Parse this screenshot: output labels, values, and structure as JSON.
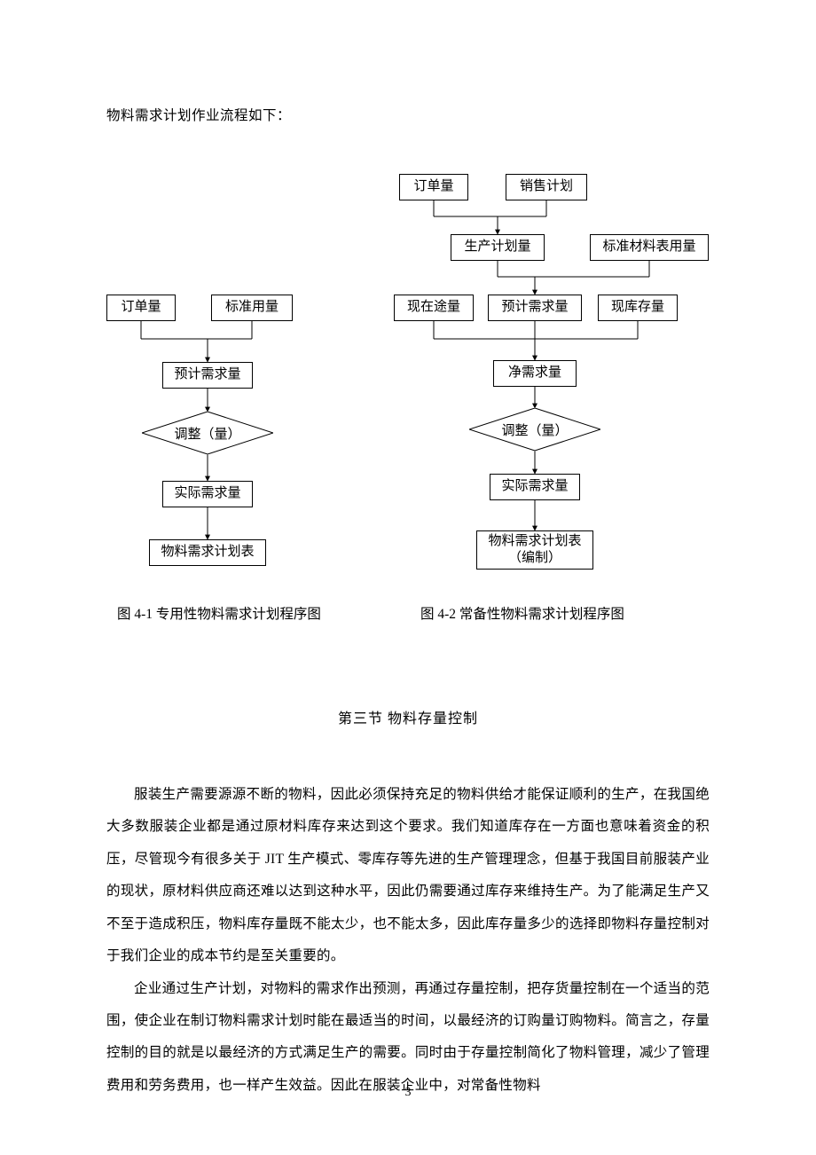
{
  "intro": "物料需求计划作业流程如下：",
  "left": {
    "nodes": {
      "order": {
        "label": "订单量"
      },
      "std": {
        "label": "标准用量"
      },
      "est": {
        "label": "预计需求量"
      },
      "adj": {
        "label": "调整（量）"
      },
      "act": {
        "label": "实际需求量"
      },
      "table": {
        "label": "物料需求计划表"
      }
    },
    "caption": "图 4-1  专用性物料需求计划程序图"
  },
  "right": {
    "nodes": {
      "order": {
        "label": "订单量"
      },
      "sales": {
        "label": "销售计划"
      },
      "plan": {
        "label": "生产计划量"
      },
      "stdmat": {
        "label": "标准材料表用量"
      },
      "transit": {
        "label": "现在途量"
      },
      "est": {
        "label": "预计需求量"
      },
      "stock": {
        "label": "现库存量"
      },
      "net": {
        "label": "净需求量"
      },
      "adj": {
        "label": "调整（量）"
      },
      "act": {
        "label": "实际需求量"
      },
      "table": {
        "label": "物料需求计划表\n（编制）"
      }
    },
    "caption": "图 4-2   常备性物料需求计划程序图"
  },
  "section_title": "第三节  物料存量控制",
  "paragraphs": [
    "服装生产需要源源不断的物料，因此必须保持充足的物料供给才能保证顺利的生产，在我国绝大多数服装企业都是通过原材料库存来达到这个要求。我们知道库存在一方面也意味着资金的积压，尽管现今有很多关于 JIT 生产模式、零库存等先进的生产管理理念，但基于我国目前服装产业的现状，原材料供应商还难以达到这种水平，因此仍需要通过库存来维持生产。为了能满足生产又不至于造成积压，物料库存量既不能太少，也不能太多，因此库存量多少的选择即物料存量控制对于我们企业的成本节约是至关重要的。",
    "企业通过生产计划，对物料的需求作出预测，再通过存量控制，把存货量控制在一个适当的范围，使企业在制订物料需求计划时能在最适当的时间，以最经济的订购量订购物料。简言之，存量控制的目的就是以最经济的方式满足生产的需要。同时由于存量控制简化了物料管理，减少了管理费用和劳务费用，也一样产生效益。因此在服装企业中，对常备性物料"
  ],
  "page_number": "3",
  "style": {
    "stroke": "#000000",
    "stroke_width": 1,
    "arrow_size": 6,
    "font_family": "SimSun",
    "background": "#ffffff"
  }
}
